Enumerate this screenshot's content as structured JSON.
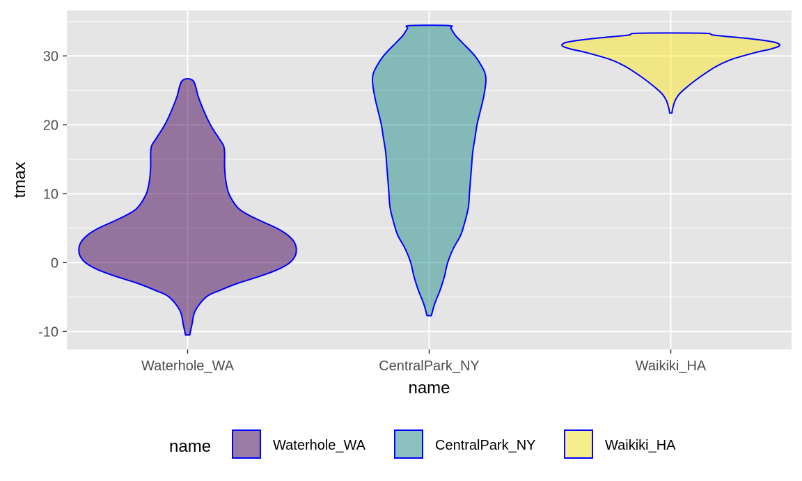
{
  "chart_data": {
    "type": "violin",
    "xlabel": "name",
    "ylabel": "tmax",
    "ylim": [
      -12.6,
      36.6
    ],
    "y_ticks": [
      "-10",
      "0",
      "10",
      "20",
      "30"
    ],
    "y_tick_values": [
      -10,
      0,
      10,
      20,
      30
    ],
    "categories": [
      "Waterhole_WA",
      "CentralPark_NY",
      "Waikiki_HA"
    ],
    "legend": {
      "title": "name",
      "position": "bottom"
    },
    "grid": true,
    "panel_background": "#e5e5e5",
    "outline_color": "#0000ff",
    "fill_alpha": 0.5,
    "series": [
      {
        "name": "Waterhole_WA",
        "fill": "#440154",
        "range": [
          -10.5,
          26.4
        ],
        "density_profile": [
          [
            -10.5,
            0.02
          ],
          [
            -9,
            0.04
          ],
          [
            -7,
            0.07
          ],
          [
            -5,
            0.17
          ],
          [
            -4,
            0.3
          ],
          [
            -3,
            0.46
          ],
          [
            -2,
            0.66
          ],
          [
            -1,
            0.83
          ],
          [
            0,
            0.94
          ],
          [
            1,
            0.99
          ],
          [
            2,
            1.0
          ],
          [
            3,
            0.98
          ],
          [
            4,
            0.92
          ],
          [
            5,
            0.82
          ],
          [
            6,
            0.68
          ],
          [
            7,
            0.55
          ],
          [
            8,
            0.46
          ],
          [
            10,
            0.38
          ],
          [
            12,
            0.35
          ],
          [
            14,
            0.34
          ],
          [
            16,
            0.34
          ],
          [
            17,
            0.33
          ],
          [
            18,
            0.29
          ],
          [
            20,
            0.21
          ],
          [
            22,
            0.15
          ],
          [
            24,
            0.1
          ],
          [
            26.4,
            0.05
          ]
        ]
      },
      {
        "name": "CentralPark_NY",
        "fill": "#21908c",
        "range": [
          -7.7,
          34.4
        ],
        "density_profile": [
          [
            -7.7,
            0.02
          ],
          [
            -6,
            0.05
          ],
          [
            -4,
            0.1
          ],
          [
            -2,
            0.14
          ],
          [
            0,
            0.17
          ],
          [
            2,
            0.22
          ],
          [
            4,
            0.29
          ],
          [
            6,
            0.33
          ],
          [
            8,
            0.36
          ],
          [
            10,
            0.37
          ],
          [
            12,
            0.38
          ],
          [
            14,
            0.39
          ],
          [
            16,
            0.4
          ],
          [
            18,
            0.42
          ],
          [
            20,
            0.44
          ],
          [
            22,
            0.47
          ],
          [
            24,
            0.5
          ],
          [
            26,
            0.52
          ],
          [
            27,
            0.52
          ],
          [
            28,
            0.5
          ],
          [
            30,
            0.42
          ],
          [
            32,
            0.3
          ],
          [
            33,
            0.24
          ],
          [
            34,
            0.2
          ],
          [
            34.4,
            0.18
          ]
        ]
      },
      {
        "name": "Waikiki_HA",
        "fill": "#fde725",
        "range": [
          21.7,
          33.3
        ],
        "density_profile": [
          [
            21.7,
            0.01
          ],
          [
            22.5,
            0.02
          ],
          [
            23.5,
            0.04
          ],
          [
            24.5,
            0.08
          ],
          [
            25.5,
            0.15
          ],
          [
            26.5,
            0.23
          ],
          [
            27.5,
            0.32
          ],
          [
            28.5,
            0.42
          ],
          [
            29.5,
            0.56
          ],
          [
            30.5,
            0.78
          ],
          [
            31,
            0.92
          ],
          [
            31.5,
            1.0
          ],
          [
            32,
            0.95
          ],
          [
            32.5,
            0.73
          ],
          [
            33,
            0.4
          ],
          [
            33.3,
            0.3
          ]
        ]
      }
    ]
  }
}
